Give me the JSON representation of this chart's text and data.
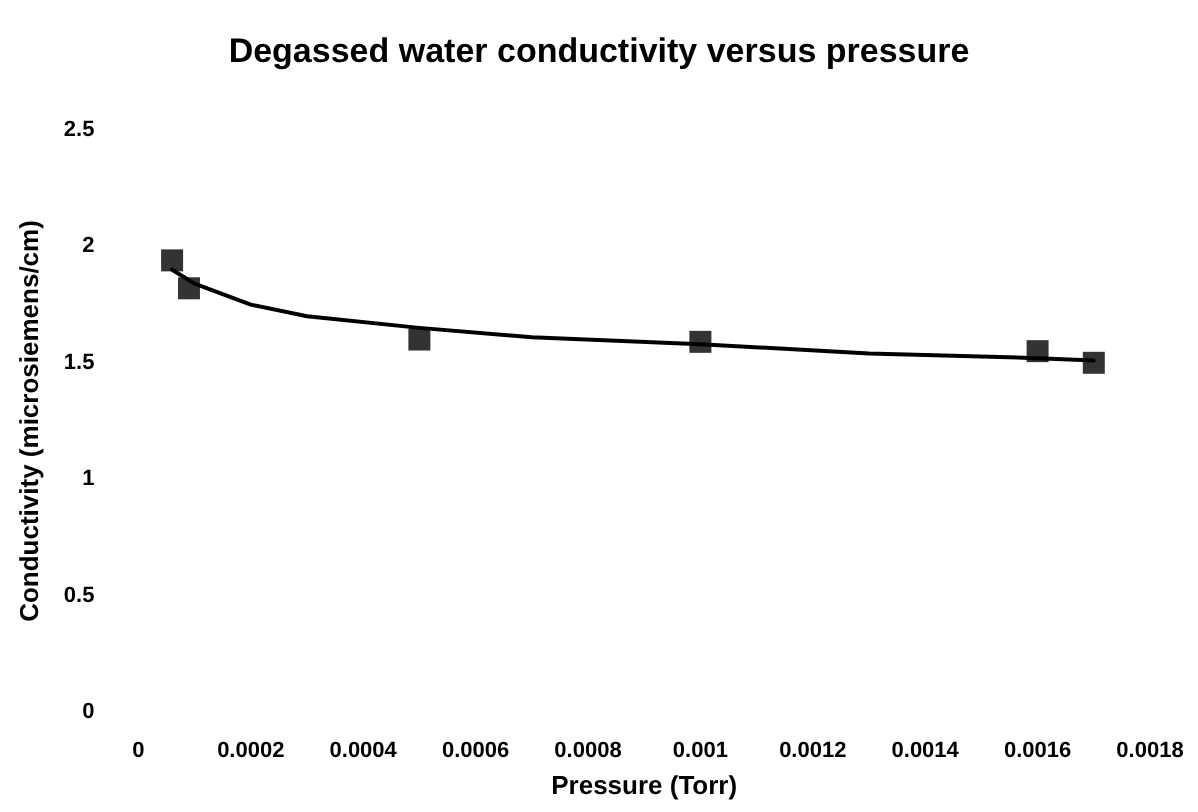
{
  "chart_data": {
    "type": "scatter",
    "title": "Degassed water conductivity versus pressure",
    "xlabel": "Pressure (Torr)",
    "ylabel": "Conductivity (microsiemens/cm)",
    "xlim": [
      0,
      0.0018
    ],
    "xticks": [
      0,
      0.0002,
      0.0004,
      0.0006,
      0.0008,
      0.001,
      0.0012,
      0.0014,
      0.0016,
      0.0018
    ],
    "ylim": [
      0,
      2.5
    ],
    "yticks": [
      0,
      0.5,
      1,
      1.5,
      2,
      2.5
    ],
    "grid": false,
    "marker": "square",
    "series": [
      {
        "color": "#000000",
        "x": [
          6e-05,
          9e-05,
          0.0005,
          0.001,
          0.0016,
          0.0017
        ],
        "values": [
          1.94,
          1.82,
          1.6,
          1.59,
          1.55,
          1.5
        ]
      },
      {
        "type": "line",
        "color": "#000000",
        "marker": "none",
        "line_style": "solid",
        "x": [
          6e-05,
          0.0001,
          0.0002,
          0.0003,
          0.0005,
          0.0007,
          0.001,
          0.0013,
          0.0016,
          0.0017
        ],
        "values": [
          1.9,
          1.84,
          1.75,
          1.7,
          1.65,
          1.61,
          1.58,
          1.54,
          1.52,
          1.51
        ]
      }
    ]
  }
}
